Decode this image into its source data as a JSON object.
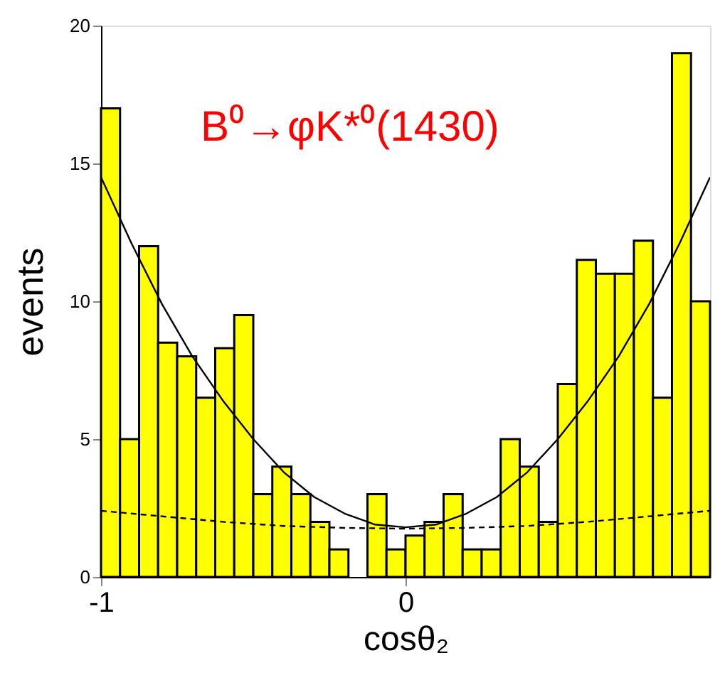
{
  "chart_data": {
    "type": "histogram",
    "xlabel": "cosθ₂",
    "ylabel": "events",
    "annotations": [
      "B⁰→φK*⁰(1430)"
    ],
    "bins": [
      -1,
      -0.9375,
      -0.875,
      -0.8125,
      -0.75,
      -0.6875,
      -0.625,
      -0.5625,
      -0.5,
      -0.4375,
      -0.375,
      -0.3125,
      -0.25,
      -0.1875,
      -0.125,
      -0.0625,
      0,
      0.0625,
      0.125,
      0.1875,
      0.25,
      0.3125,
      0.375,
      0.4375,
      0.5,
      0.5625,
      0.625,
      0.6875,
      0.75,
      0.8125,
      0.875,
      0.9375,
      1
    ],
    "values": [
      17,
      5,
      12,
      8.5,
      8,
      6.5,
      8.3,
      9.5,
      3,
      4,
      3,
      2,
      1,
      0,
      3,
      1,
      1.5,
      2,
      3,
      1,
      1,
      5,
      4,
      2,
      7,
      11.5,
      11,
      11,
      12.2,
      6.5,
      19,
      10
    ],
    "color": "#ffff00",
    "series": [
      {
        "type": "line",
        "color": "#000000",
        "line_style": "solid",
        "x": [
          -1,
          -0.9,
          -0.8,
          -0.7,
          -0.6,
          -0.5,
          -0.4,
          -0.3,
          -0.2,
          -0.1,
          0,
          0.1,
          0.2,
          0.3,
          0.4,
          0.5,
          0.6,
          0.7,
          0.8,
          0.9,
          1
        ],
        "values": [
          14.5,
          12.1,
          9.9,
          8.0,
          6.4,
          5.0,
          3.8,
          2.9,
          2.3,
          1.9,
          1.8,
          1.9,
          2.3,
          2.9,
          3.8,
          5.0,
          6.4,
          8.0,
          9.9,
          12.1,
          14.5
        ]
      },
      {
        "type": "line",
        "color": "#000000",
        "line_style": "dashed",
        "x": [
          -1,
          -0.8,
          -0.6,
          -0.4,
          -0.2,
          0,
          0.2,
          0.4,
          0.6,
          0.8,
          1
        ],
        "values": [
          2.4,
          2.2,
          2.0,
          1.85,
          1.78,
          1.75,
          1.78,
          1.85,
          2.0,
          2.2,
          2.4
        ]
      }
    ],
    "xlim": [
      -1,
      1
    ],
    "xticks": [
      -1,
      0
    ],
    "ylim": [
      0,
      20
    ],
    "yticks": [
      0,
      5,
      10,
      15,
      20
    ],
    "grid": false
  }
}
